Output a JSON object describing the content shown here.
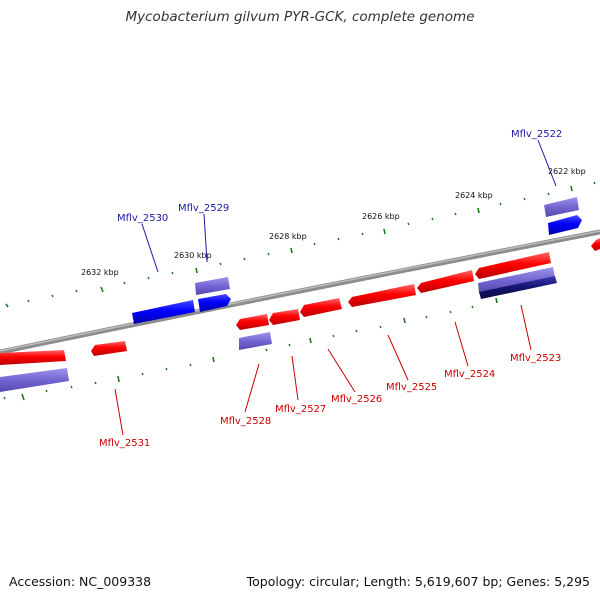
{
  "title": "Mycobacterium gilvum PYR-GCK, complete genome",
  "footer": {
    "accession": "Accession: NC_009338",
    "topology": "Topology: circular; Length: 5,619,607 bp; Genes: 5,295"
  },
  "colors": {
    "backbone": "#8a8a8a",
    "forward_cds": "#ff0000",
    "reverse_cds": "#0000ff",
    "light_blue": "#7b6fd6",
    "dark_blue": "#1a1a8c",
    "tick": "#1a7a1a",
    "label_red": "#cc0000",
    "label_blue": "#1a1aa0"
  },
  "ticks": [
    {
      "label": "2632 kbp"
    },
    {
      "label": "2630 kbp"
    },
    {
      "label": "2628 kbp"
    },
    {
      "label": "2626 kbp"
    },
    {
      "label": "2624 kbp"
    },
    {
      "label": "2622 kbp"
    }
  ],
  "genes": [
    {
      "label": "Mflv_2522"
    },
    {
      "label": "Mflv_2523"
    },
    {
      "label": "Mflv_2524"
    },
    {
      "label": "Mflv_2525"
    },
    {
      "label": "Mflv_2526"
    },
    {
      "label": "Mflv_2527"
    },
    {
      "label": "Mflv_2528"
    },
    {
      "label": "Mflv_2529"
    },
    {
      "label": "Mflv_2530"
    },
    {
      "label": "Mflv_2531"
    }
  ]
}
